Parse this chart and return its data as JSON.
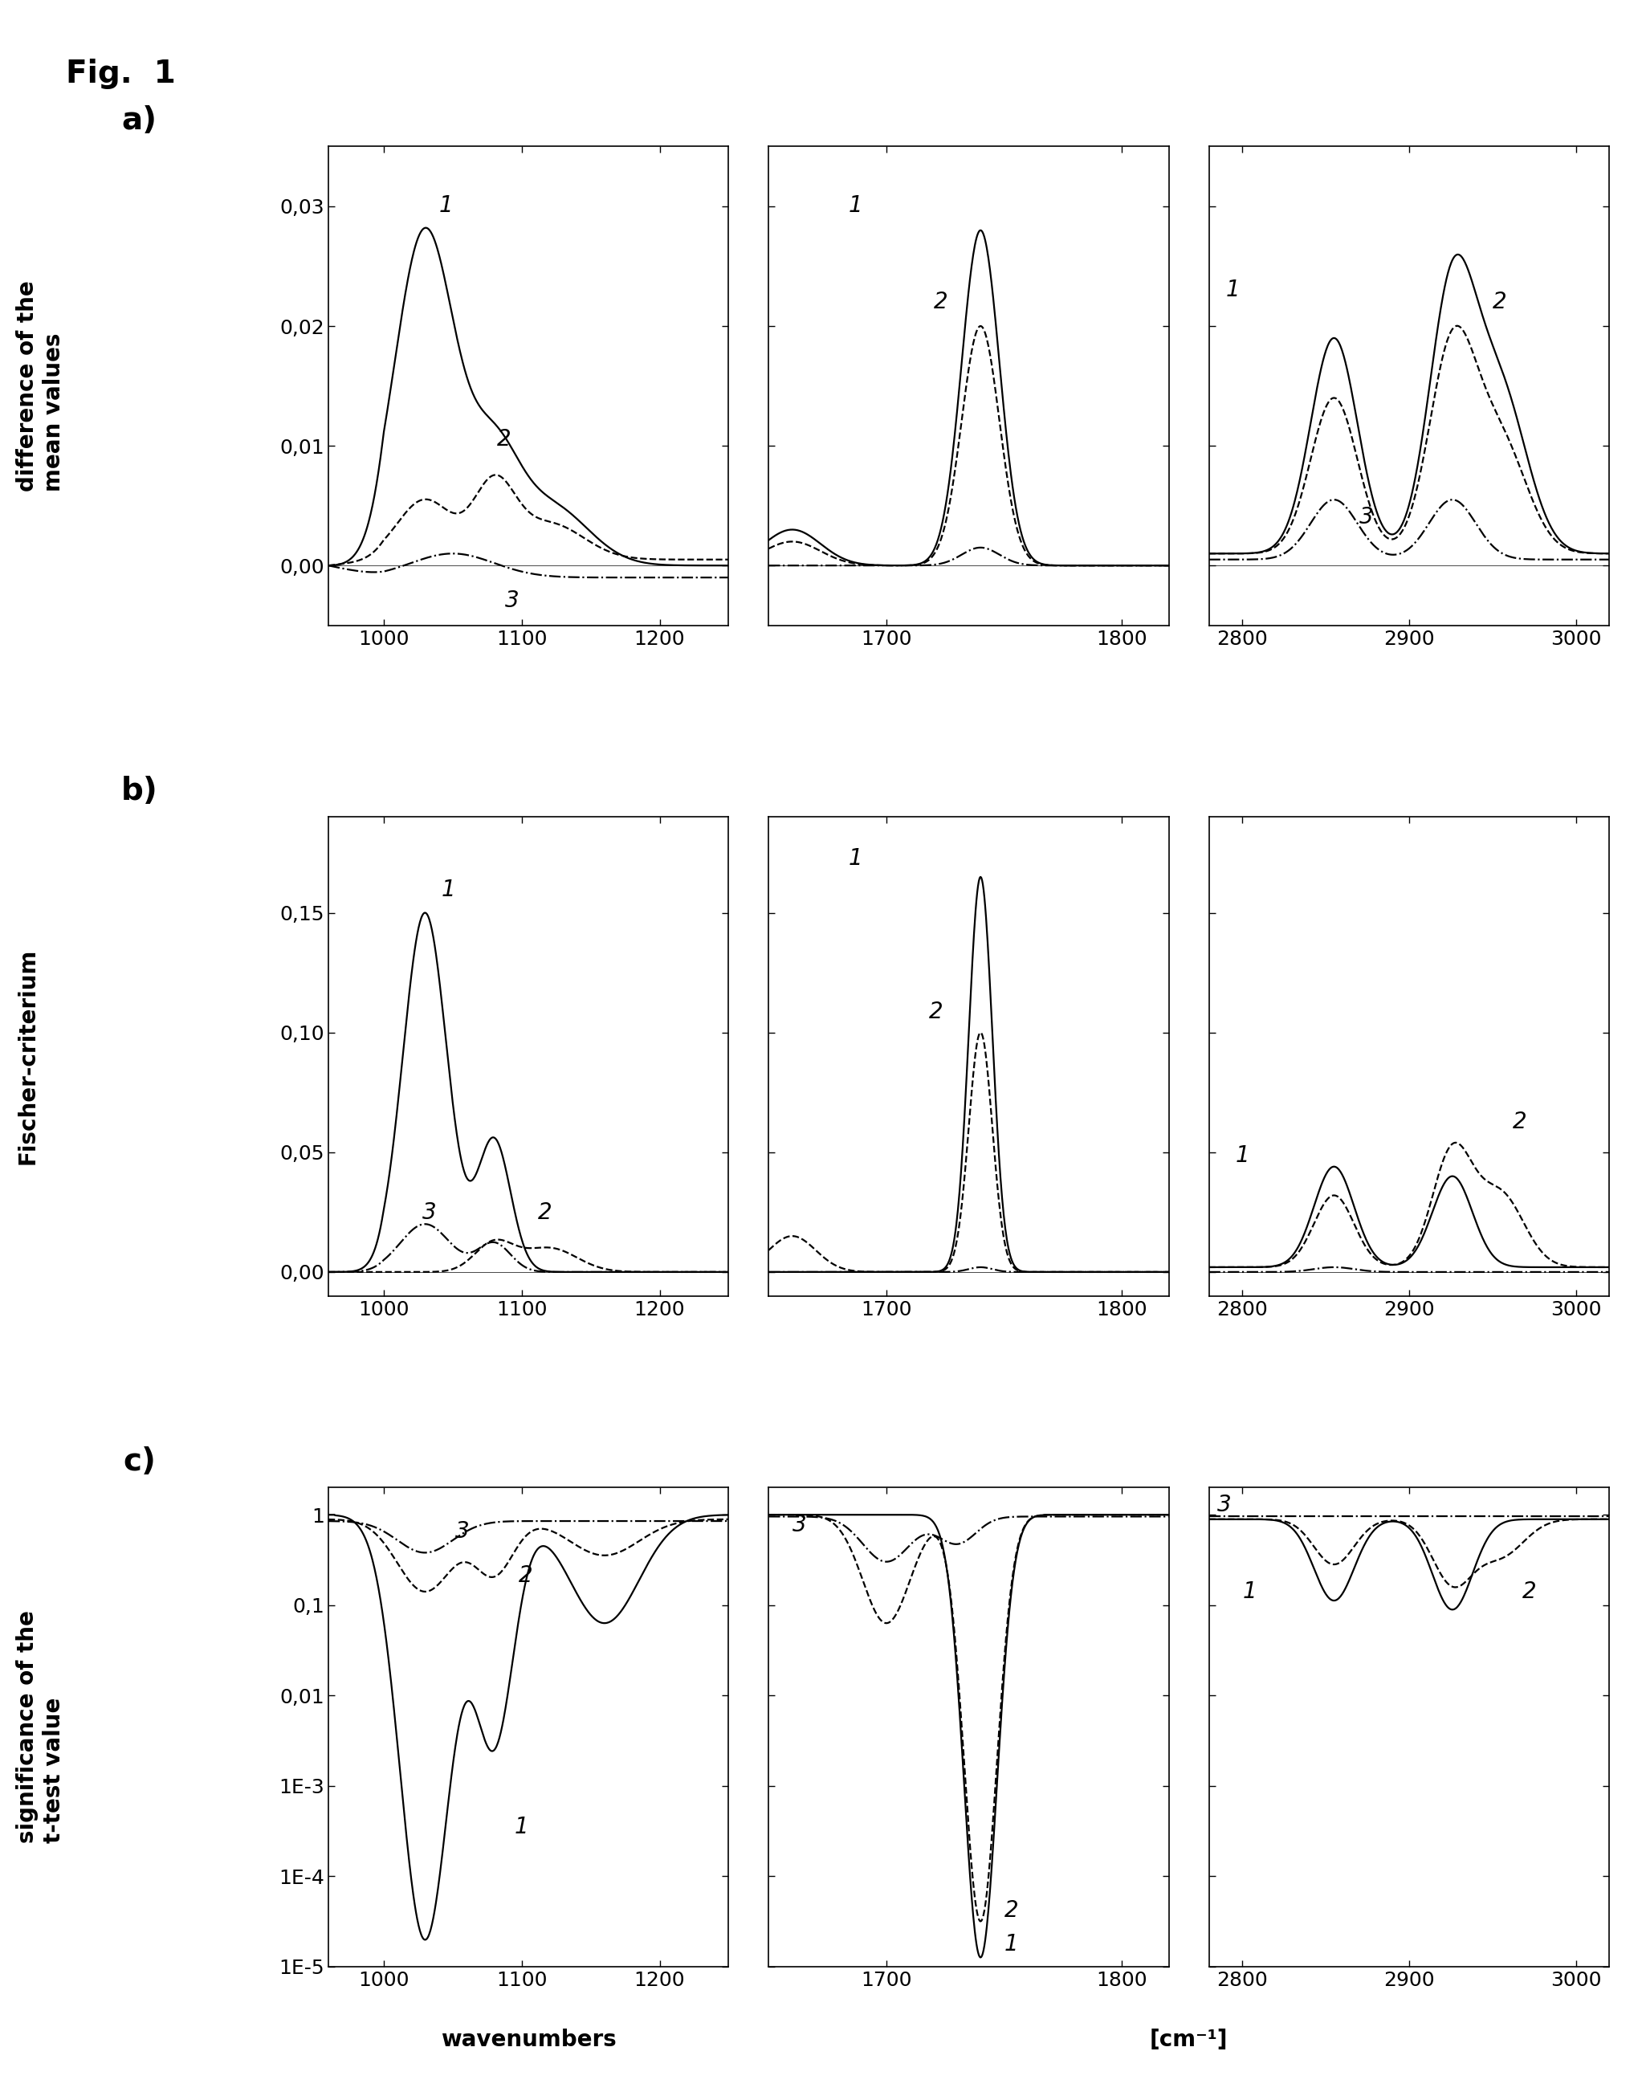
{
  "fig_label": "Fig.  1",
  "row_labels": [
    "a)",
    "b)",
    "c)"
  ],
  "ylabels": [
    "difference of the\nmean values",
    "Fischer-criterium",
    "significance of the\nt-test value"
  ],
  "row_a_yticks_labels": [
    "0,00",
    "0,01",
    "0,02",
    "0,03"
  ],
  "row_a_yticks": [
    0.0,
    0.01,
    0.02,
    0.03
  ],
  "row_b_yticks_labels": [
    "0,00",
    "0,05",
    "0,10",
    "0,15"
  ],
  "row_b_yticks": [
    0.0,
    0.05,
    0.1,
    0.15
  ],
  "row_c_yticks_labels": [
    "1E-5",
    "1E-4",
    "1E-3",
    "0,01",
    "0,1",
    "1"
  ],
  "row_c_yticks": [
    1e-05,
    0.0001,
    0.001,
    0.01,
    0.1,
    1
  ],
  "x_ticks_col0": [
    1000,
    1100,
    1200
  ],
  "x_ticks_col1": [
    1700,
    1800
  ],
  "x_ticks_col2": [
    2800,
    2900,
    3000
  ],
  "xlabel_col0": "wavenumbers",
  "xlabel_col12": "[cm⁻¹]"
}
